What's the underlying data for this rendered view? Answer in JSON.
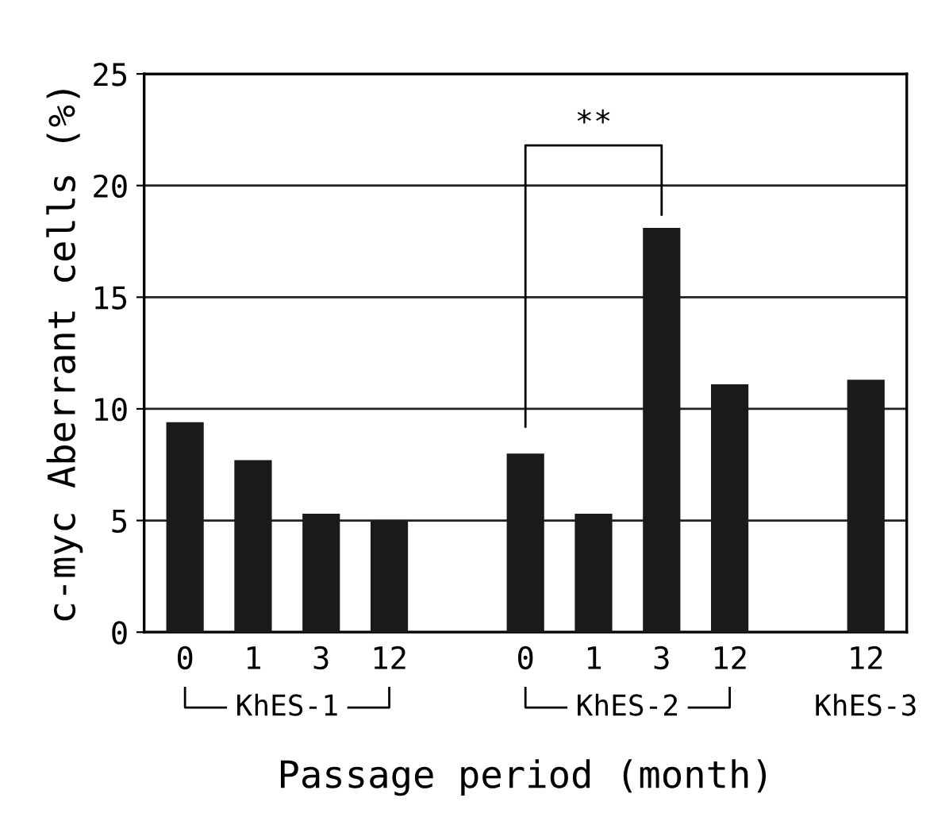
{
  "chart_data": {
    "type": "bar",
    "xlabel": "Passage period (month)",
    "ylabel": "c-myc Aberrant cells (%)",
    "categories": [
      "0",
      "1",
      "3",
      "12",
      null,
      "0",
      "1",
      "3",
      "12",
      null,
      "12"
    ],
    "values": [
      9.4,
      7.7,
      5.3,
      5.0,
      null,
      8.0,
      5.3,
      18.1,
      11.1,
      null,
      11.3
    ],
    "color": "#1a1a1a",
    "ylim": [
      0,
      25
    ],
    "yticks": [
      0,
      5,
      10,
      15,
      20,
      25
    ],
    "grid": "y",
    "annotations": [
      "**",
      "KhES-1",
      "KhES-2",
      "KhES-3"
    ]
  }
}
